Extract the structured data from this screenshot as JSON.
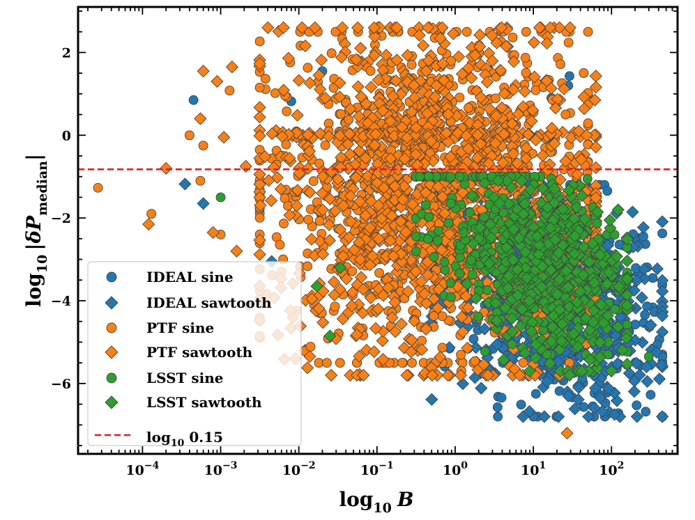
{
  "chart_data": {
    "type": "scatter",
    "xscale": "log",
    "yscale": "linear",
    "xlim": [
      1.5e-05,
      700
    ],
    "ylim": [
      -7.7,
      3.1
    ],
    "x_ticks": [
      {
        "value": 0.0001,
        "base": "10",
        "exp": "−4"
      },
      {
        "value": 0.001,
        "base": "10",
        "exp": "−3"
      },
      {
        "value": 0.01,
        "base": "10",
        "exp": "−2"
      },
      {
        "value": 0.1,
        "base": "10",
        "exp": "−1"
      },
      {
        "value": 1,
        "base": "10",
        "exp": "0"
      },
      {
        "value": 10,
        "base": "10",
        "exp": "1"
      },
      {
        "value": 100,
        "base": "10",
        "exp": "2"
      }
    ],
    "y_ticks": [
      {
        "value": 2,
        "label": "2"
      },
      {
        "value": 0,
        "label": "0"
      },
      {
        "value": -2,
        "label": "−2"
      },
      {
        "value": -4,
        "label": "−4"
      },
      {
        "value": -6,
        "label": "−6"
      }
    ],
    "xlabel": {
      "main": "log",
      "sub": "10",
      "var": "B"
    },
    "ylabel": {
      "main": "log",
      "sub": "10",
      "bar_open": "|",
      "delta": "δ",
      "var": "P",
      "var_sub": "median",
      "bar_close": "|"
    },
    "hline": {
      "y": -0.824,
      "color": "#e31a1c",
      "style": "dashed"
    },
    "series": [
      {
        "name": "IDEAL sine",
        "marker": "circle",
        "color": "#1f77b4",
        "points": []
      },
      {
        "name": "IDEAL sawtooth",
        "marker": "diamond",
        "color": "#1f77b4",
        "points": []
      },
      {
        "name": "PTF sine",
        "marker": "circle",
        "color": "#ff7f0e",
        "points": []
      },
      {
        "name": "PTF sawtooth",
        "marker": "diamond",
        "color": "#ff7f0e",
        "points": []
      },
      {
        "name": "LSST sine",
        "marker": "circle",
        "color": "#2ca02c",
        "points": []
      },
      {
        "name": "LSST sawtooth",
        "marker": "diamond",
        "color": "#2ca02c",
        "points": []
      }
    ],
    "legend": {
      "placement": "lower-left",
      "entries": [
        {
          "label": "IDEAL sine",
          "series": 0
        },
        {
          "label": "IDEAL sawtooth",
          "series": 1
        },
        {
          "label": "PTF sine",
          "series": 2
        },
        {
          "label": "PTF sawtooth",
          "series": 3
        },
        {
          "label": "LSST sine",
          "series": 4
        },
        {
          "label": "LSST sawtooth",
          "series": 5
        },
        {
          "label_main": "log",
          "label_sub": "10",
          "label_rest": " 0.15",
          "line": true
        }
      ]
    },
    "cloud_regions": [
      {
        "series": 0,
        "count": 420,
        "xlog": [
          0.0,
          2.55
        ],
        "y": [
          -6.3,
          -1.5
        ],
        "note": "dense tail toward large B"
      },
      {
        "series": 1,
        "count": 420,
        "xlog": [
          0.0,
          2.55
        ],
        "y": [
          -6.3,
          -1.6
        ]
      },
      {
        "series": 2,
        "count": 900,
        "xlog": [
          -2.2,
          1.6
        ],
        "y": [
          -5.0,
          2.2
        ]
      },
      {
        "series": 3,
        "count": 1100,
        "xlog": [
          -2.2,
          1.7
        ],
        "y": [
          -5.3,
          2.3
        ]
      },
      {
        "series": 4,
        "count": 380,
        "xlog": [
          -0.2,
          2.1
        ],
        "y": [
          -4.8,
          -1.3
        ]
      },
      {
        "series": 5,
        "count": 460,
        "xlog": [
          0.4,
          2.1
        ],
        "y": [
          -5.2,
          -1.4
        ]
      }
    ],
    "outliers": [
      {
        "series": 2,
        "x": 2.7e-05,
        "y": -1.27
      },
      {
        "series": 2,
        "x": 0.00013,
        "y": -1.9
      },
      {
        "series": 3,
        "x": 0.00012,
        "y": -2.15
      },
      {
        "series": 3,
        "x": 0.0002,
        "y": -0.8
      },
      {
        "series": 0,
        "x": 0.00045,
        "y": 0.85
      },
      {
        "series": 3,
        "x": 0.0006,
        "y": 1.55
      },
      {
        "series": 3,
        "x": 0.0009,
        "y": 1.3
      },
      {
        "series": 3,
        "x": 0.0014,
        "y": 1.65
      },
      {
        "series": 2,
        "x": 0.0013,
        "y": 1.08
      },
      {
        "series": 2,
        "x": 0.0004,
        "y": 0.0
      },
      {
        "series": 3,
        "x": 0.00055,
        "y": 0.4
      },
      {
        "series": 2,
        "x": 0.0006,
        "y": -0.25
      },
      {
        "series": 1,
        "x": 0.00035,
        "y": -1.18
      },
      {
        "series": 1,
        "x": 0.0006,
        "y": -1.65
      },
      {
        "series": 2,
        "x": 0.00055,
        "y": -1.1
      },
      {
        "series": 4,
        "x": 0.001,
        "y": -1.5
      },
      {
        "series": 3,
        "x": 0.0008,
        "y": -2.35
      },
      {
        "series": 2,
        "x": 0.001,
        "y": -2.4
      },
      {
        "series": 3,
        "x": 0.0016,
        "y": -2.8
      },
      {
        "series": 3,
        "x": 0.0011,
        "y": -0.05
      },
      {
        "series": 3,
        "x": 0.0021,
        "y": -0.75
      },
      {
        "series": 1,
        "x": 0.0045,
        "y": -3.05
      },
      {
        "series": 2,
        "x": 0.006,
        "y": -3.3
      },
      {
        "series": 2,
        "x": 0.0063,
        "y": -3.0
      },
      {
        "series": 4,
        "x": 0.0023,
        "y": -4.1
      },
      {
        "series": 1,
        "x": 0.012,
        "y": -5.2
      },
      {
        "series": 5,
        "x": 0.025,
        "y": -4.85
      },
      {
        "series": 5,
        "x": 0.017,
        "y": -3.65
      },
      {
        "series": 5,
        "x": 0.034,
        "y": -3.2
      },
      {
        "series": 2,
        "x": 0.013,
        "y": 1.63
      },
      {
        "series": 2,
        "x": 0.55,
        "y": 2.35
      },
      {
        "series": 0,
        "x": 0.02,
        "y": 1.55
      },
      {
        "series": 0,
        "x": 0.008,
        "y": 0.82
      },
      {
        "series": 0,
        "x": 29.0,
        "y": 1.43
      },
      {
        "series": 0,
        "x": 28.0,
        "y": 1.2
      },
      {
        "series": 0,
        "x": 17.0,
        "y": 0.9
      },
      {
        "series": 3,
        "x": 4.5,
        "y": 2.15
      },
      {
        "series": 2,
        "x": 1.2,
        "y": -5.7
      },
      {
        "series": 3,
        "x": 27.0,
        "y": -7.2
      },
      {
        "series": 1,
        "x": 28.0,
        "y": -6.3
      },
      {
        "series": 1,
        "x": 38.0,
        "y": -6.1
      },
      {
        "series": 5,
        "x": 29.0,
        "y": -5.8
      },
      {
        "series": 4,
        "x": 300.0,
        "y": -5.35
      },
      {
        "series": 3,
        "x": 60.0,
        "y": 0.0
      },
      {
        "series": 3,
        "x": 48.0,
        "y": 0.0
      },
      {
        "series": 1,
        "x": 2.6,
        "y": -5.65
      },
      {
        "series": 1,
        "x": 15.0,
        "y": -5.95
      },
      {
        "series": 1,
        "x": 280.0,
        "y": -5.6
      }
    ]
  }
}
